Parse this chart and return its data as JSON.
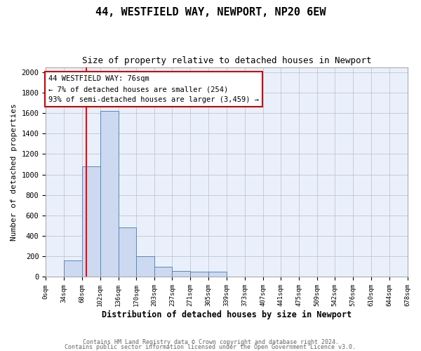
{
  "title1": "44, WESTFIELD WAY, NEWPORT, NP20 6EW",
  "title2": "Size of property relative to detached houses in Newport",
  "xlabel": "Distribution of detached houses by size in Newport",
  "ylabel": "Number of detached properties",
  "bins": [
    0,
    34,
    68,
    102,
    136,
    170,
    203,
    237,
    271,
    305,
    339,
    373,
    407,
    441,
    475,
    509,
    542,
    576,
    610,
    644,
    678
  ],
  "counts": [
    0,
    160,
    1080,
    1620,
    480,
    200,
    100,
    60,
    50,
    50,
    0,
    0,
    0,
    0,
    0,
    0,
    0,
    0,
    0,
    0
  ],
  "bar_face_color": "#ccd9f0",
  "bar_edge_color": "#5588bb",
  "background_color": "#eaf0fb",
  "grid_color": "#bbbbcc",
  "red_line_x": 76,
  "annotation_text": "44 WESTFIELD WAY: 76sqm\n← 7% of detached houses are smaller (254)\n93% of semi-detached houses are larger (3,459) →",
  "annotation_box_color": "#ffffff",
  "annotation_box_edge": "#cc0000",
  "ylim": [
    0,
    2050
  ],
  "yticks": [
    0,
    200,
    400,
    600,
    800,
    1000,
    1200,
    1400,
    1600,
    1800,
    2000
  ],
  "footer1": "Contains HM Land Registry data © Crown copyright and database right 2024.",
  "footer2": "Contains public sector information licensed under the Open Government Licence v3.0."
}
